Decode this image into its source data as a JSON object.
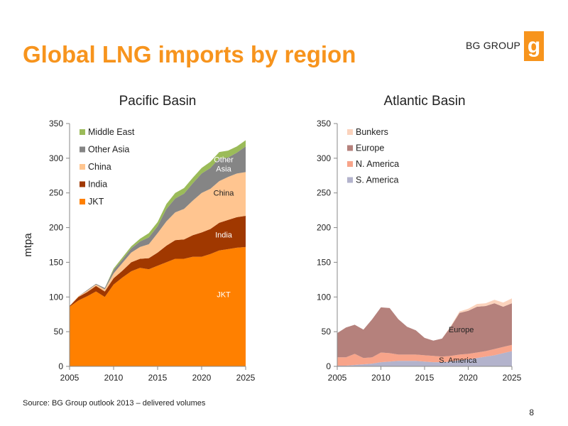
{
  "slide": {
    "title": "Global LNG imports by region",
    "logo_text": "BG GROUP",
    "logo_glyph": "g",
    "source": "Source: BG Group outlook 2013 – delivered volumes",
    "page_number": "8"
  },
  "colors": {
    "accent": "#f7941d"
  },
  "chart_data": [
    {
      "type": "area",
      "stacked": true,
      "title": "Pacific Basin",
      "xlabel": "",
      "ylabel": "mtpa",
      "xlim": [
        2005,
        2025
      ],
      "ylim": [
        0,
        350
      ],
      "xticks": [
        2005,
        2010,
        2015,
        2020,
        2025
      ],
      "yticks": [
        0,
        50,
        100,
        150,
        200,
        250,
        300,
        350
      ],
      "grid": false,
      "legend_position": "top-left",
      "x": [
        2005,
        2006,
        2007,
        2008,
        2009,
        2010,
        2011,
        2012,
        2013,
        2014,
        2015,
        2016,
        2017,
        2018,
        2019,
        2020,
        2021,
        2022,
        2023,
        2024,
        2025
      ],
      "series": [
        {
          "name": "JKT",
          "color": "#ff8000",
          "values": [
            86,
            95,
            101,
            108,
            100,
            118,
            128,
            137,
            142,
            140,
            145,
            150,
            155,
            155,
            158,
            158,
            162,
            167,
            169,
            171,
            172
          ]
        },
        {
          "name": "India",
          "color": "#a03800",
          "values": [
            1,
            5,
            6,
            8,
            8,
            9,
            10,
            13,
            13,
            16,
            19,
            24,
            27,
            28,
            31,
            35,
            36,
            40,
            42,
            44,
            45
          ]
        },
        {
          "name": "China",
          "color": "#ffc590",
          "values": [
            0,
            1,
            2,
            2,
            3,
            7,
            11,
            14,
            17,
            20,
            28,
            35,
            40,
            44,
            50,
            57,
            58,
            60,
            62,
            63,
            63
          ]
        },
        {
          "name": "Other Asia",
          "color": "#858585",
          "values": [
            0,
            0,
            1,
            1,
            2,
            5,
            5,
            6,
            8,
            10,
            10,
            18,
            20,
            22,
            25,
            28,
            30,
            33,
            28,
            30,
            37
          ]
        },
        {
          "name": "Middle East",
          "color": "#9bbb59",
          "values": [
            0,
            0,
            0,
            0,
            0,
            2,
            3,
            3,
            4,
            6,
            6,
            7,
            8,
            8,
            8,
            8,
            9,
            9,
            10,
            9,
            9
          ]
        }
      ],
      "annotations": [
        {
          "text": "JKT",
          "x": 2022.5,
          "y": 100,
          "color": "#ffffff"
        },
        {
          "text": "India",
          "x": 2022.5,
          "y": 186,
          "color": "#ffffff"
        },
        {
          "text": "China",
          "x": 2022.5,
          "y": 246,
          "color": "#222222"
        },
        {
          "text": "Other",
          "x": 2022.5,
          "y": 294,
          "color": "#ffffff"
        },
        {
          "text": "Asia",
          "x": 2022.5,
          "y": 281,
          "color": "#ffffff"
        }
      ]
    },
    {
      "type": "area",
      "stacked": true,
      "title": "Atlantic Basin",
      "xlabel": "",
      "ylabel": "",
      "xlim": [
        2005,
        2025
      ],
      "ylim": [
        0,
        350
      ],
      "xticks": [
        2005,
        2010,
        2015,
        2020,
        2025
      ],
      "yticks": [
        0,
        50,
        100,
        150,
        200,
        250,
        300,
        350
      ],
      "grid": false,
      "legend_position": "top-left",
      "x": [
        2005,
        2006,
        2007,
        2008,
        2009,
        2010,
        2011,
        2012,
        2013,
        2014,
        2015,
        2016,
        2017,
        2018,
        2019,
        2020,
        2021,
        2022,
        2023,
        2024,
        2025
      ],
      "series": [
        {
          "name": "S. America",
          "color": "#b3b3cc",
          "values": [
            1,
            1,
            2,
            3,
            4,
            6,
            7,
            8,
            8,
            8,
            7,
            6,
            6,
            7,
            9,
            10,
            12,
            14,
            16,
            19,
            22
          ]
        },
        {
          "name": "N. America",
          "color": "#f8a48a",
          "values": [
            12,
            12,
            16,
            9,
            9,
            14,
            12,
            9,
            9,
            9,
            9,
            9,
            8,
            8,
            8,
            8,
            8,
            8,
            9,
            9,
            9
          ]
        },
        {
          "name": "Europe",
          "color": "#b5817c",
          "values": [
            35,
            43,
            42,
            41,
            55,
            65,
            65,
            51,
            40,
            35,
            25,
            22,
            26,
            42,
            60,
            62,
            66,
            65,
            66,
            58,
            60
          ]
        },
        {
          "name": "Bunkers",
          "color": "#fbd3bd",
          "values": [
            0,
            0,
            0,
            0,
            0,
            0,
            0,
            0,
            0,
            0,
            0,
            0,
            0,
            1,
            2,
            3,
            4,
            4,
            5,
            6,
            7
          ]
        }
      ],
      "annotations": [
        {
          "text": "Europe",
          "x": 2019.2,
          "y": 49,
          "color": "#222222"
        },
        {
          "text": "S. America",
          "x": 2018.8,
          "y": 5,
          "color": "#222222"
        }
      ]
    }
  ]
}
